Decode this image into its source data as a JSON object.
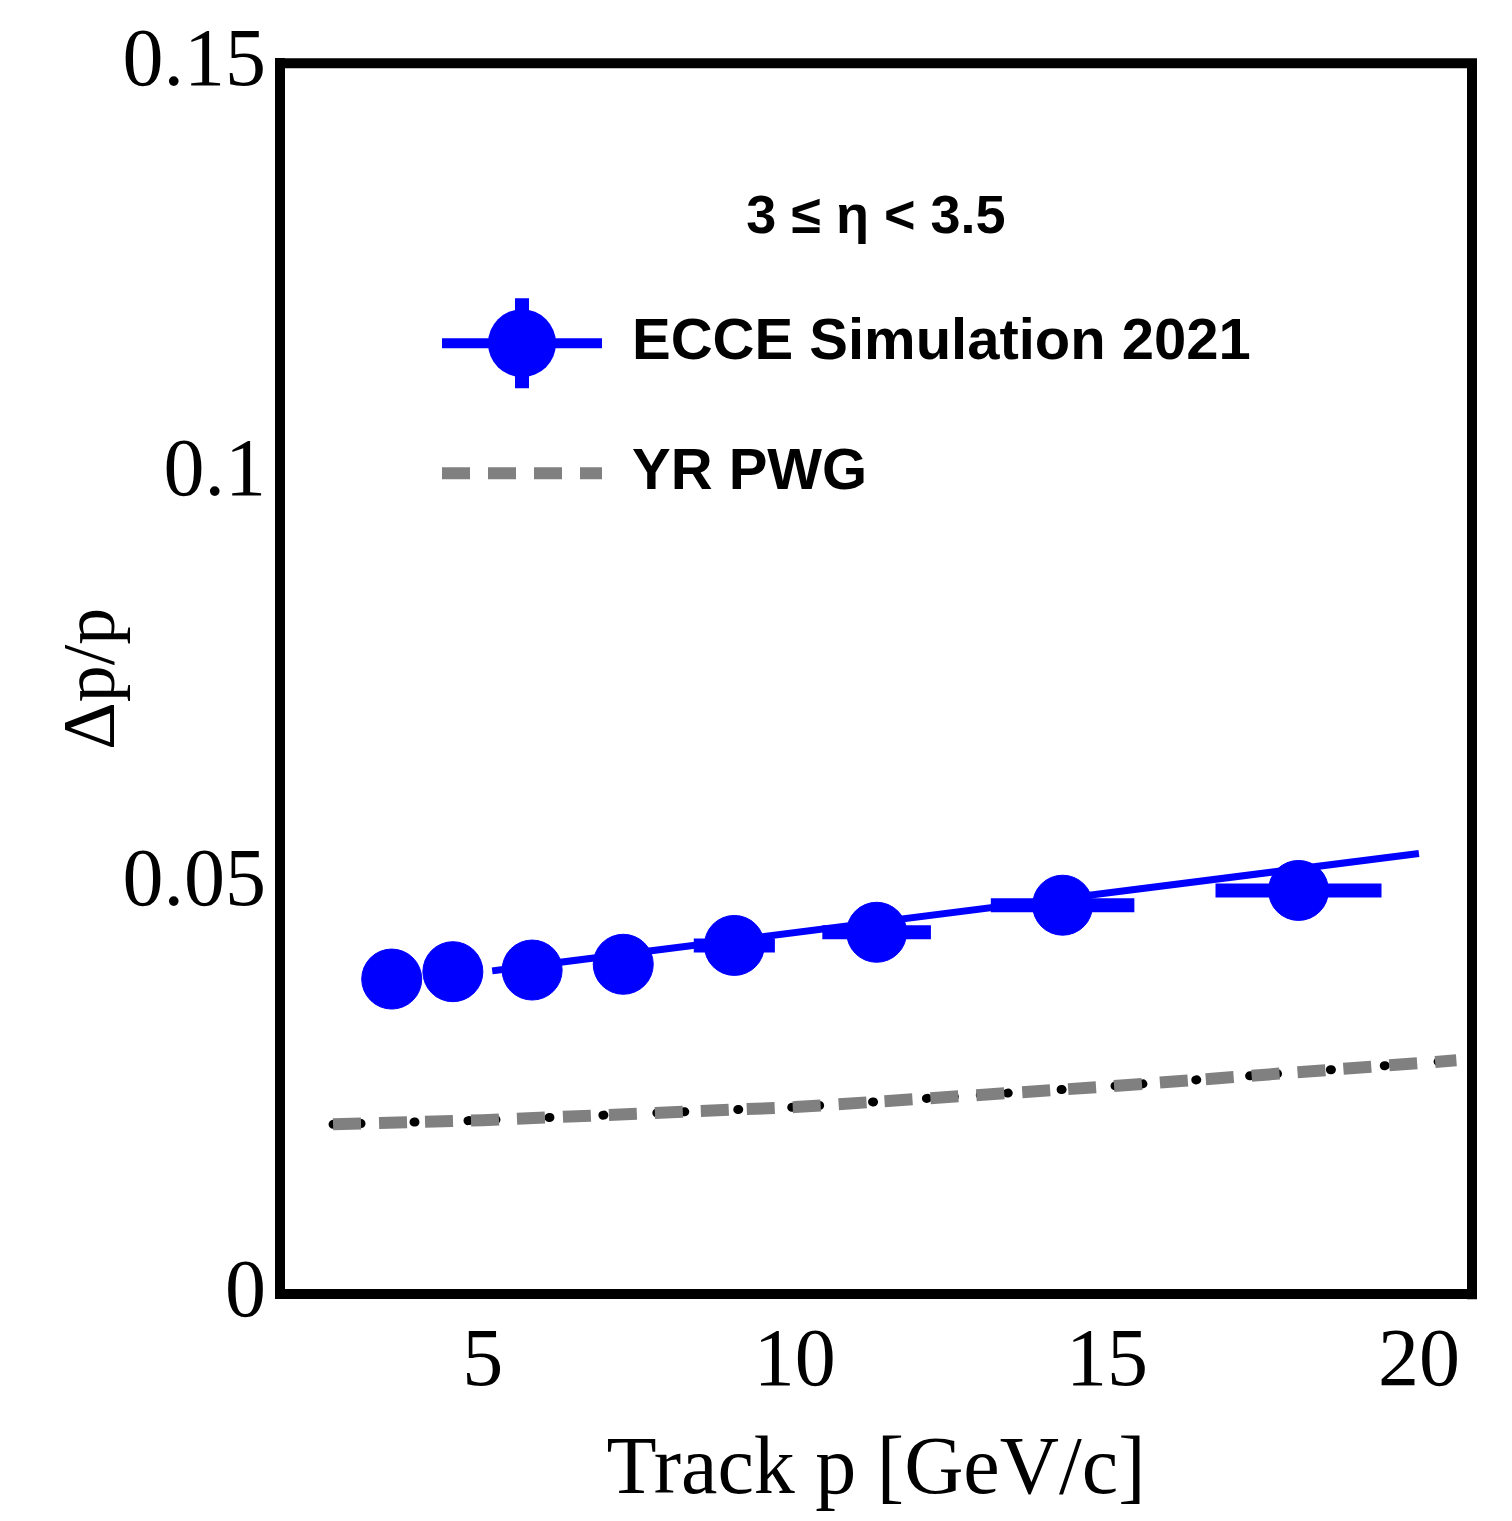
{
  "chart_data": {
    "type": "scatter",
    "xlabel": "Track p [GeV/c]",
    "ylabel": "Δp/p",
    "annotations": [
      "3 ≤ η < 3.5"
    ],
    "xlim": [
      1.75,
      20.85
    ],
    "xticks": [
      5,
      10,
      15,
      20
    ],
    "ylim": [
      0,
      0.15
    ],
    "yticks": [
      0,
      0.05,
      0.1,
      0.15
    ],
    "grid": false,
    "legend": "top right",
    "series": [
      {
        "name": "ECCE Simulation 2021",
        "type": "scatter",
        "marker": "circle",
        "color": "#0000ff",
        "x": [
          3.54,
          4.52,
          5.79,
          7.25,
          9.03,
          11.31,
          14.29,
          18.07
        ],
        "values": [
          0.0384,
          0.0393,
          0.0395,
          0.0402,
          0.0425,
          0.0441,
          0.0474,
          0.0492
        ],
        "xerrors": [
          null,
          null,
          null,
          null,
          0.65,
          0.87,
          1.15,
          1.33
        ]
      },
      {
        "type": "line",
        "marker": "none",
        "color": "#0000ff",
        "x": [
          5.15,
          20
        ],
        "values": [
          0.0394,
          0.0537
        ],
        "line_style": "solid"
      },
      {
        "name": "YR PWG",
        "type": "line",
        "marker": "none",
        "color": "#808080",
        "x": [
          2.6,
          5,
          10,
          15,
          20.6
        ],
        "values": [
          0.0207,
          0.0212,
          0.0228,
          0.0253,
          0.0285
        ],
        "line_style": "dashed"
      },
      {
        "type": "line",
        "marker": "none",
        "color": "#000000",
        "x": [
          2.6,
          5,
          10,
          15,
          20.6
        ],
        "values": [
          0.0207,
          0.0212,
          0.0228,
          0.0253,
          0.0285
        ],
        "line_style": "dotted"
      }
    ]
  }
}
